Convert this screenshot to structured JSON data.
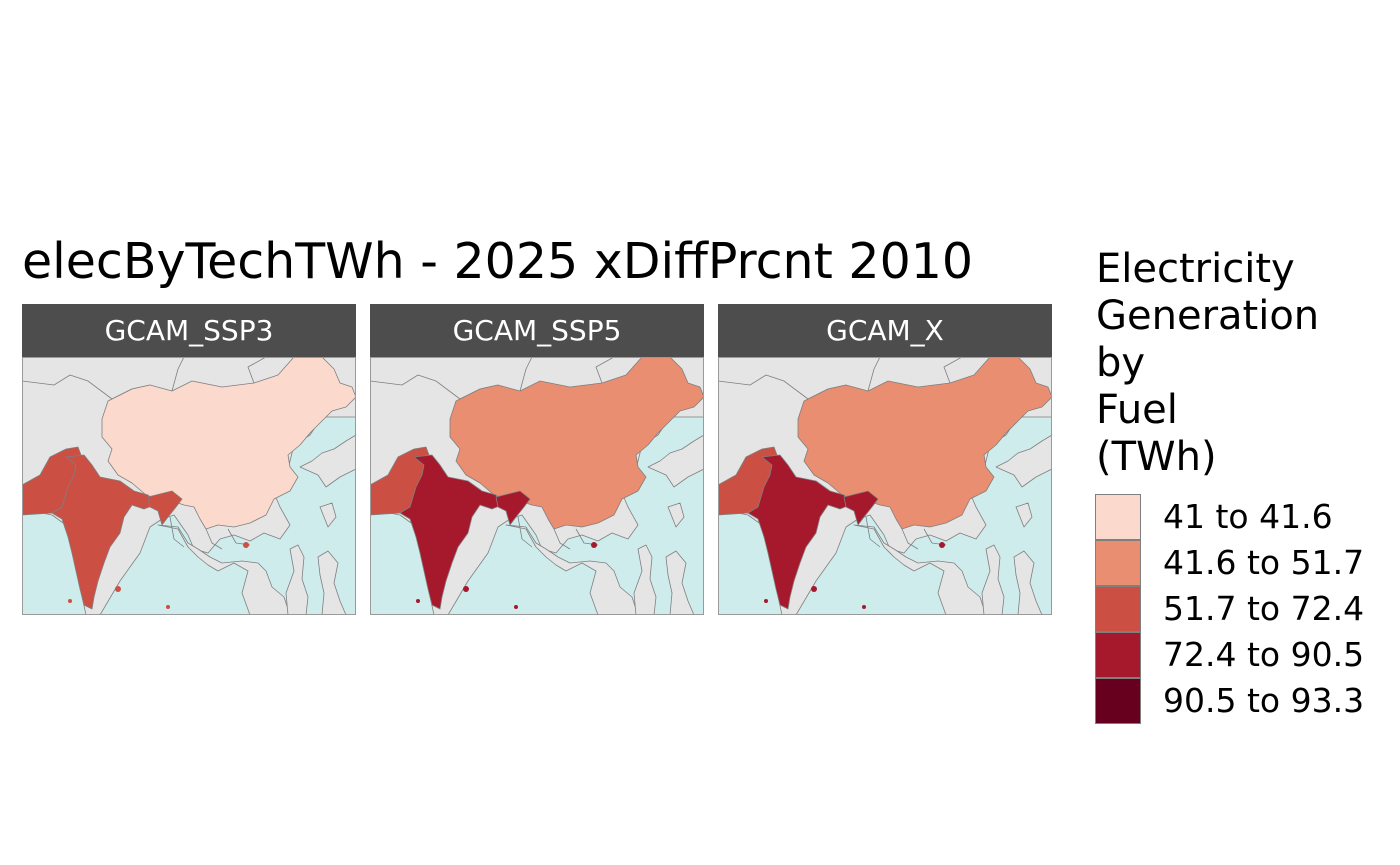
{
  "title": "elecByTechTWh - 2025 xDiffPrcnt 2010",
  "legend": {
    "title_lines": [
      "Electricity",
      "Generation",
      "by",
      "Fuel",
      "(TWh)"
    ],
    "items": [
      {
        "label": "41 to 41.6",
        "color": "#fbd9cc"
      },
      {
        "label": "41.6 to 51.7",
        "color": "#e98e70"
      },
      {
        "label": "51.7 to 72.4",
        "color": "#cc4f43"
      },
      {
        "label": "72.4 to 90.5",
        "color": "#a6182b"
      },
      {
        "label": "90.5 to 93.3",
        "color": "#67001f"
      }
    ]
  },
  "colors": {
    "strip_background": "#4d4d4d",
    "sea": "#cfeced",
    "land": "#e5e5e5",
    "border": "#7f7f7f"
  },
  "facets": [
    {
      "label": "GCAM_SSP3",
      "regions": {
        "China": "41 to 41.6",
        "India": "51.7 to 72.4",
        "Pakistan": "51.7 to 72.4",
        "Bangladesh": "51.7 to 72.4"
      }
    },
    {
      "label": "GCAM_SSP5",
      "regions": {
        "China": "41.6 to 51.7",
        "India": "72.4 to 90.5",
        "Pakistan": "51.7 to 72.4",
        "Bangladesh": "72.4 to 90.5"
      }
    },
    {
      "label": "GCAM_X",
      "regions": {
        "China": "41.6 to 51.7",
        "India": "72.4 to 90.5",
        "Pakistan": "51.7 to 72.4",
        "Bangladesh": "72.4 to 90.5"
      }
    }
  ]
}
